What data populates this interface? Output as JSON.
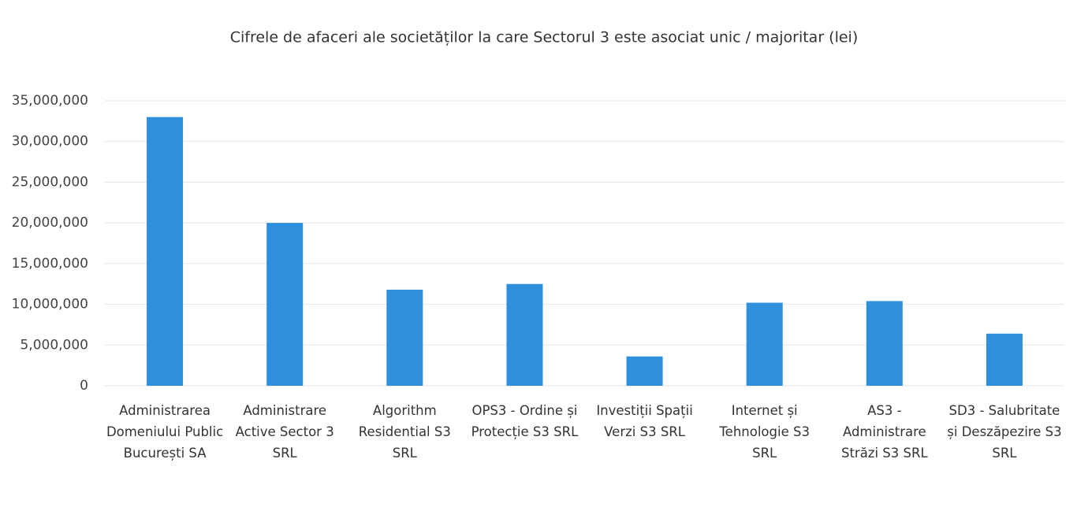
{
  "chart_data": {
    "type": "bar",
    "title": "Cifrele de afaceri ale societăților la care Sectorul 3 este asociat unic / majoritar (lei)",
    "categories": [
      "Administrarea Domeniului Public București  SA",
      "Administrare Active Sector 3 SRL",
      "Algorithm Residential S3 SRL",
      "OPS3 - Ordine și Protecție S3 SRL",
      "Investiții Spații Verzi S3 SRL",
      "Internet și Tehnologie S3 SRL",
      "AS3 - Administrare Străzi S3 SRL",
      "SD3 - Salubritate și Deszăpezire S3 SRL"
    ],
    "values": [
      33000000,
      20000000,
      11800000,
      12500000,
      3600000,
      10200000,
      10400000,
      6400000
    ],
    "color": "#2e8fdc",
    "ylim": [
      0,
      35000000
    ],
    "yticks": [
      0,
      {
        "value": 5000000,
        "label": "5,000,000"
      },
      {
        "value": 10000000,
        "label": "10,000,000"
      },
      {
        "value": 15000000,
        "label": "15,000,000"
      },
      {
        "value": 20000000,
        "label": "20,000,000"
      },
      {
        "value": 25000000,
        "label": "25,000,000"
      },
      {
        "value": 30000000,
        "label": "30,000,000"
      },
      {
        "value": 35000000,
        "label": "35,000,000"
      }
    ],
    "grid": true
  }
}
